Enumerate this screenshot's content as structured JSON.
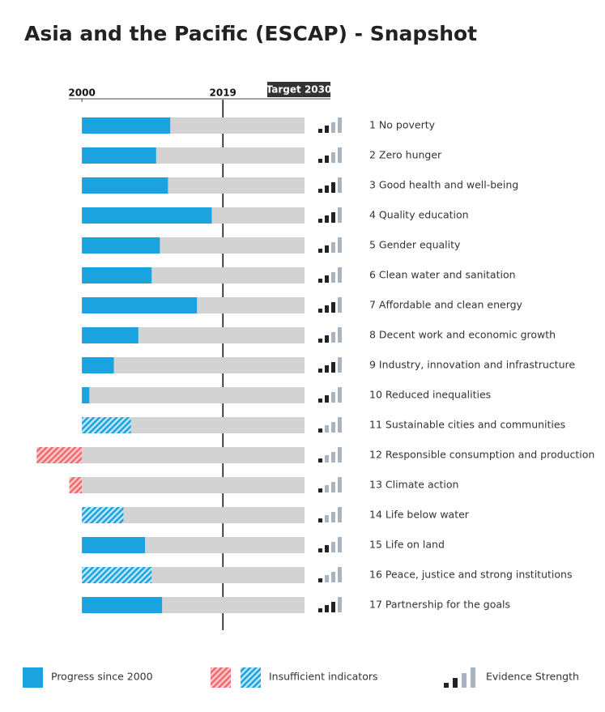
{
  "chart_data": {
    "type": "bar",
    "orientation": "horizontal",
    "title": "Asia and the Pacific (ESCAP) - Snapshot",
    "categories": [
      "1 No poverty",
      "2 Zero hunger",
      "3 Good health and well-being",
      "4 Quality education",
      "5 Gender equality",
      "6 Clean water and sanitation",
      "7 Affordable and clean energy",
      "8 Decent work and economic growth",
      "9 Industry, innovation and infrastructure",
      "10 Reduced inequalities",
      "11 Sustainable cities and communities",
      "12 Responsible consumption and production",
      "13 Climate action",
      "14 Life below water",
      "15 Life on land",
      "16 Peace, justice and strong institutions",
      "17 Partnership for the goals"
    ],
    "values": [
      2011.9,
      2010.0,
      2011.6,
      2017.5,
      2010.5,
      2009.4,
      2015.5,
      2007.6,
      2004.3,
      2001.0,
      2006.6,
      1993.9,
      1998.3,
      2005.6,
      2008.5,
      2009.4,
      2010.8
    ],
    "insufficient_indicators": [
      false,
      false,
      false,
      false,
      false,
      false,
      false,
      false,
      false,
      false,
      true,
      true,
      true,
      true,
      false,
      true,
      false
    ],
    "evidence_strength": [
      2,
      2,
      3,
      3,
      2,
      2,
      3,
      2,
      3,
      2,
      1,
      1,
      1,
      1,
      2,
      1,
      3
    ],
    "xlim": [
      1993,
      2030
    ],
    "xticks": [
      2000,
      2019,
      {
        "value": 2030,
        "label": "Target 2030"
      }
    ],
    "colors": {
      "progress": "#1ba3e0",
      "regress": "#ef6b6f",
      "track": "#d3d3d3",
      "evidence_on": "#222222",
      "evidence_off": "#a9b4c0"
    },
    "legend": [
      "Progress since 2000",
      "Insufficient indicators",
      "Evidence Strength"
    ]
  }
}
